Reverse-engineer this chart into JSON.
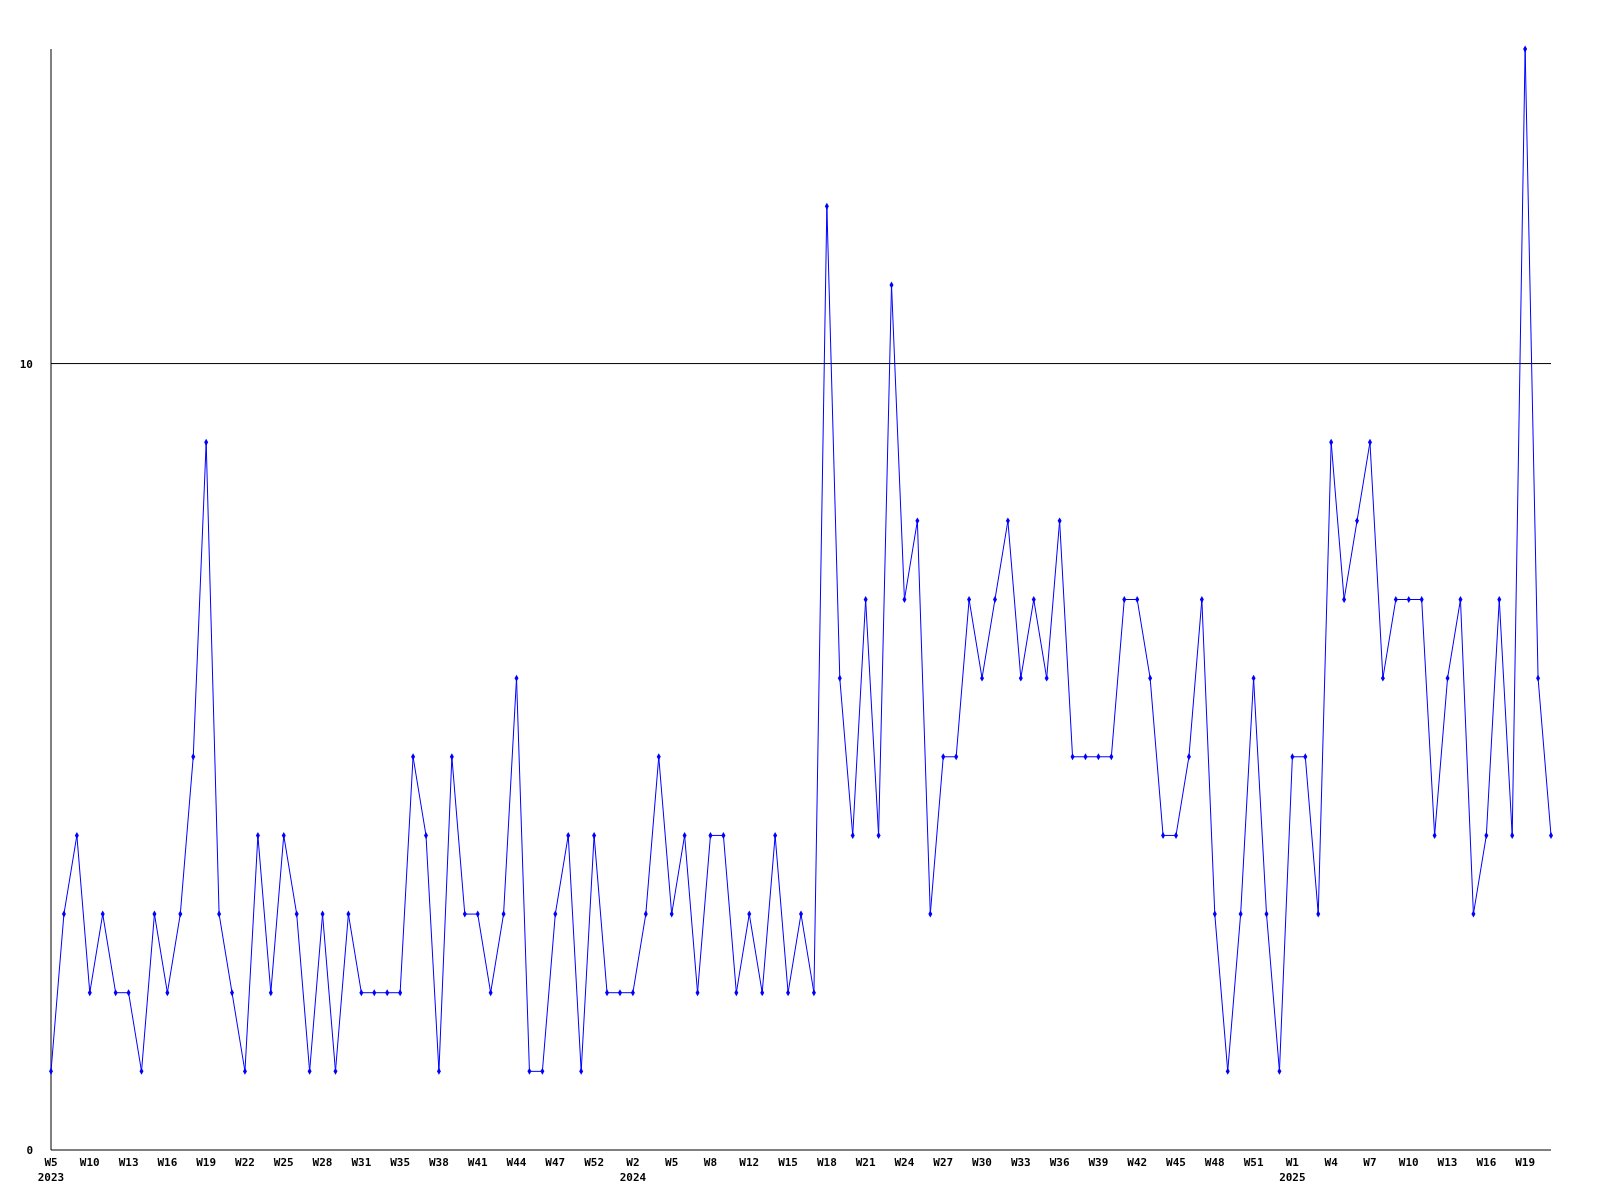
{
  "chart_data": {
    "type": "line",
    "categories": [
      "W5\n2023",
      null,
      null,
      "W10",
      null,
      null,
      "W13",
      null,
      null,
      "W16",
      null,
      null,
      "W19",
      null,
      null,
      "W22",
      null,
      null,
      "W25",
      null,
      null,
      "W28",
      null,
      null,
      "W31",
      null,
      null,
      "W35",
      null,
      null,
      "W38",
      null,
      null,
      "W41",
      null,
      null,
      "W44",
      null,
      null,
      "W47",
      null,
      null,
      "W52",
      null,
      null,
      "W2\n2024",
      null,
      null,
      "W5",
      null,
      null,
      "W8",
      null,
      null,
      "W12",
      null,
      null,
      "W15",
      null,
      null,
      "W18",
      null,
      null,
      "W21",
      null,
      null,
      "W24",
      null,
      null,
      "W27",
      null,
      null,
      "W30",
      null,
      null,
      "W33",
      null,
      null,
      "W36",
      null,
      null,
      "W39",
      null,
      null,
      "W42",
      null,
      null,
      "W45",
      null,
      null,
      "W48",
      null,
      null,
      "W51",
      null,
      null,
      "W1\n2025",
      null,
      null,
      "W4",
      null,
      null,
      "W7",
      null,
      null,
      "W10",
      null,
      null,
      "W13",
      null,
      null,
      "W16",
      null,
      null,
      "W19",
      null,
      null
    ],
    "series": [
      {
        "color": "#0000ff",
        "values": [
          1,
          3,
          4,
          2,
          3,
          2,
          2,
          1,
          3,
          2,
          3,
          5,
          9,
          3,
          2,
          1,
          4,
          2,
          4,
          3,
          1,
          3,
          1,
          3,
          2,
          2,
          2,
          2,
          5,
          4,
          1,
          5,
          3,
          3,
          2,
          3,
          6,
          1,
          1,
          3,
          4,
          1,
          4,
          2,
          2,
          2,
          3,
          5,
          3,
          4,
          2,
          4,
          4,
          2,
          3,
          2,
          4,
          2,
          3,
          2,
          12,
          6,
          4,
          7,
          4,
          11,
          7,
          8,
          3,
          5,
          5,
          7,
          6,
          7,
          8,
          6,
          7,
          6,
          8,
          5,
          5,
          5,
          5,
          7,
          7,
          6,
          4,
          4,
          5,
          7,
          3,
          1,
          3,
          6,
          3,
          1,
          5,
          5,
          3,
          9,
          7,
          8,
          9,
          6,
          7,
          7,
          7,
          4,
          6,
          7,
          3,
          4,
          7,
          4,
          14,
          6,
          4
        ]
      }
    ],
    "ylim": [
      0,
      14
    ],
    "yticks": [
      0,
      10
    ],
    "grid": "y",
    "marker": "diamond",
    "line_style": "solid"
  }
}
